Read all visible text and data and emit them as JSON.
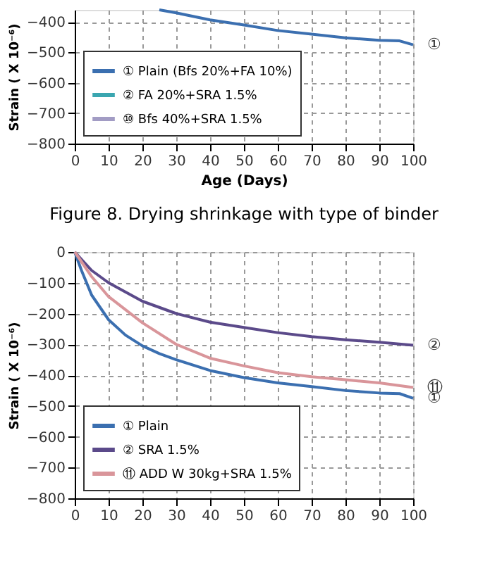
{
  "chart_data": [
    {
      "type": "line",
      "xlabel": "Age (Days)",
      "ylabel": "Strain ( X 10⁻⁶)",
      "xlim": [
        0,
        100
      ],
      "xticks": [
        0,
        10,
        20,
        30,
        40,
        50,
        60,
        70,
        80,
        90,
        100
      ],
      "ylim": [
        -800,
        -360
      ],
      "yticks": [
        -400,
        -500,
        -600,
        -700,
        -800
      ],
      "grid": true,
      "legend": "bottom left",
      "series": [
        {
          "name": "① Plain (Bfs 20%+FA 10%)",
          "color": "#3b6fb0",
          "x": [
            25,
            30,
            40,
            50,
            60,
            70,
            80,
            90,
            96,
            100
          ],
          "values": [
            -360,
            -370,
            -393,
            -410,
            -428,
            -440,
            -452,
            -460,
            -462,
            -475
          ]
        },
        {
          "name": "② FA 20%+SRA 1.5%",
          "color": "#3aa6b0"
        },
        {
          "name": "⑩ Bfs 40%+SRA 1.5%",
          "color": "#a29cc4"
        }
      ],
      "annotations": [
        "①",
        "Figure 8. Drying shrinkage with type of binder"
      ]
    },
    {
      "type": "line",
      "ylabel": "Strain ( X 10⁻⁶)",
      "xlim": [
        0,
        100
      ],
      "xticks": [
        0,
        10,
        20,
        30,
        40,
        50,
        60,
        70,
        80,
        90,
        100
      ],
      "ylim": [
        -800,
        0
      ],
      "yticks": [
        0,
        -100,
        -200,
        -300,
        -400,
        -500,
        -600,
        -700,
        -800
      ],
      "grid": true,
      "legend": "bottom left",
      "series": [
        {
          "name": "① Plain",
          "color": "#3b6fb0",
          "x": [
            0,
            2,
            5,
            10,
            15,
            20,
            25,
            30,
            40,
            50,
            60,
            70,
            80,
            90,
            96,
            100
          ],
          "values": [
            0,
            -60,
            -140,
            -220,
            -270,
            -305,
            -330,
            -350,
            -385,
            -408,
            -425,
            -437,
            -450,
            -458,
            -460,
            -475
          ]
        },
        {
          "name": "② SRA 1.5%",
          "color": "#5b4a8a",
          "x": [
            0,
            5,
            10,
            20,
            30,
            40,
            50,
            60,
            70,
            80,
            90,
            100
          ],
          "values": [
            0,
            -60,
            -100,
            -160,
            -200,
            -228,
            -245,
            -262,
            -275,
            -285,
            -293,
            -303
          ]
        },
        {
          "name": "⑪ ADD W 30kg+SRA 1.5%",
          "color": "#d9959a",
          "x": [
            0,
            5,
            10,
            20,
            30,
            40,
            50,
            60,
            70,
            80,
            90,
            100
          ],
          "values": [
            0,
            -80,
            -145,
            -230,
            -300,
            -345,
            -370,
            -392,
            -405,
            -415,
            -425,
            -440
          ]
        }
      ],
      "annotations": [
        "①",
        "②",
        "⑪"
      ]
    }
  ]
}
